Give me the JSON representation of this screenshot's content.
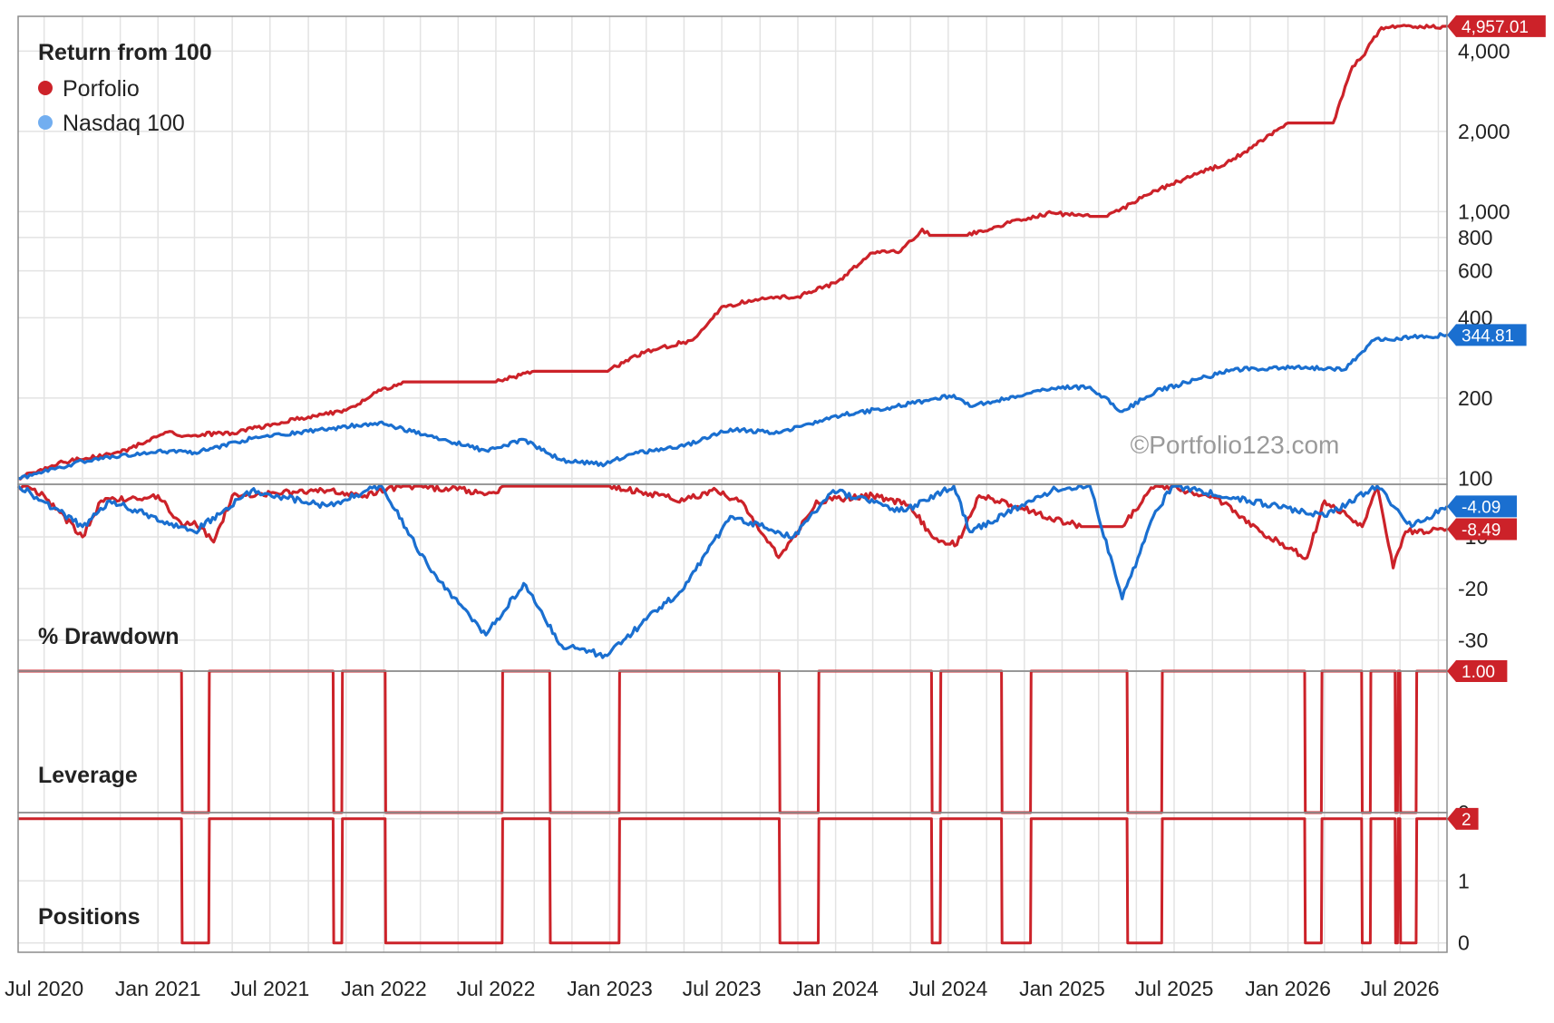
{
  "colors": {
    "portfolio": "#cc2229",
    "benchmark": "#1a6fd0",
    "benchmark_legend": "#72aef0"
  },
  "watermark": "©Portfolio123.com",
  "x_axis": {
    "labels": [
      "Jul 2020",
      "Jan 2021",
      "Jul 2021",
      "Jan 2022",
      "Jul 2022",
      "Jan 2023",
      "Jul 2023",
      "Jan 2024",
      "Jul 2024",
      "Jan 2025",
      "Jul 2025",
      "Jan 2026",
      "Jul 2026"
    ],
    "range": [
      "2020-05-20",
      "2026-09-15"
    ]
  },
  "chart_data": [
    {
      "type": "line",
      "title": "Return from 100",
      "yscale": "log",
      "ylim": [
        95,
        5400
      ],
      "ticks": [
        "100",
        "200",
        "400",
        "600",
        "800",
        "1,000",
        "2,000",
        "4,000"
      ],
      "tick_values": [
        100,
        200,
        400,
        600,
        800,
        1000,
        2000,
        4000
      ],
      "series": [
        {
          "name": "Porfolio",
          "color": "#cc2229",
          "last_label": "4,957.01",
          "points": [
            [
              "2020-05-20",
              100
            ],
            [
              "2020-08-01",
              115
            ],
            [
              "2020-11-01",
              125
            ],
            [
              "2021-01-20",
              150
            ],
            [
              "2021-02-01",
              145
            ],
            [
              "2021-05-01",
              148
            ],
            [
              "2021-09-01",
              170
            ],
            [
              "2021-11-01",
              180
            ],
            [
              "2021-12-20",
              210
            ],
            [
              "2022-02-01",
              230
            ],
            [
              "2022-06-01",
              230
            ],
            [
              "2022-07-01",
              230
            ],
            [
              "2022-09-01",
              252
            ],
            [
              "2022-12-25",
              252
            ],
            [
              "2023-03-01",
              300
            ],
            [
              "2023-05-15",
              330
            ],
            [
              "2023-07-01",
              440
            ],
            [
              "2023-09-01",
              470
            ],
            [
              "2023-11-01",
              480
            ],
            [
              "2024-01-01",
              540
            ],
            [
              "2024-03-01",
              700
            ],
            [
              "2024-04-15",
              710
            ],
            [
              "2024-05-20",
              860
            ],
            [
              "2024-06-01",
              815
            ],
            [
              "2024-08-01",
              815
            ],
            [
              "2024-10-01",
              900
            ],
            [
              "2024-12-15",
              990
            ],
            [
              "2025-02-15",
              960
            ],
            [
              "2025-03-15",
              960
            ],
            [
              "2025-06-01",
              1200
            ],
            [
              "2025-10-01",
              1550
            ],
            [
              "2026-01-01",
              2150
            ],
            [
              "2026-02-01",
              2150
            ],
            [
              "2026-03-15",
              2150
            ],
            [
              "2026-04-15",
              3500
            ],
            [
              "2026-05-01",
              3800
            ],
            [
              "2026-06-01",
              4900
            ],
            [
              "2026-09-15",
              4957.01
            ]
          ]
        },
        {
          "name": "Nasdaq 100",
          "color": "#1a6fd0",
          "legend_color": "#72aef0",
          "last_label": "344.81",
          "points": [
            [
              "2020-05-20",
              100
            ],
            [
              "2020-09-01",
              116
            ],
            [
              "2021-01-01",
              127
            ],
            [
              "2021-03-01",
              125
            ],
            [
              "2021-06-01",
              141
            ],
            [
              "2021-09-01",
              150
            ],
            [
              "2021-12-25",
              162
            ],
            [
              "2022-02-15",
              150
            ],
            [
              "2022-06-15",
              127
            ],
            [
              "2022-08-15",
              140
            ],
            [
              "2022-10-15",
              117
            ],
            [
              "2022-12-25",
              113
            ],
            [
              "2023-02-01",
              123
            ],
            [
              "2023-05-01",
              132
            ],
            [
              "2023-07-15",
              153
            ],
            [
              "2023-10-01",
              148
            ],
            [
              "2023-12-25",
              170
            ],
            [
              "2024-04-01",
              185
            ],
            [
              "2024-07-10",
              205
            ],
            [
              "2024-08-05",
              186
            ],
            [
              "2024-12-15",
              218
            ],
            [
              "2025-02-15",
              220
            ],
            [
              "2025-04-08",
              178
            ],
            [
              "2025-06-01",
              212
            ],
            [
              "2025-10-01",
              255
            ],
            [
              "2026-01-15",
              262
            ],
            [
              "2026-04-01",
              255
            ],
            [
              "2026-05-20",
              330
            ],
            [
              "2026-09-15",
              344.81
            ]
          ]
        }
      ]
    },
    {
      "type": "line",
      "title": "% Drawdown",
      "ylim": [
        -36,
        0.2
      ],
      "ticks": [
        "-10",
        "-20",
        "-30"
      ],
      "tick_values": [
        -10,
        -20,
        -30
      ],
      "series": [
        {
          "name": "Porfolio",
          "color": "#cc2229",
          "last_label": "-8.49",
          "points": [
            [
              "2020-05-20",
              0
            ],
            [
              "2020-07-01",
              -2
            ],
            [
              "2020-09-01",
              -10
            ],
            [
              "2020-10-01",
              -3
            ],
            [
              "2021-01-01",
              -2
            ],
            [
              "2021-02-10",
              -8
            ],
            [
              "2021-03-01",
              -7
            ],
            [
              "2021-04-01",
              -11
            ],
            [
              "2021-05-01",
              -2
            ],
            [
              "2021-10-01",
              -1
            ],
            [
              "2021-12-01",
              -2
            ],
            [
              "2022-02-01",
              0
            ],
            [
              "2022-07-01",
              -1.5
            ],
            [
              "2022-07-15",
              0
            ],
            [
              "2023-01-01",
              0
            ],
            [
              "2023-05-01",
              -3
            ],
            [
              "2023-06-15",
              -1
            ],
            [
              "2023-08-01",
              -3
            ],
            [
              "2023-10-01",
              -14
            ],
            [
              "2023-11-01",
              -9
            ],
            [
              "2023-12-01",
              -3
            ],
            [
              "2024-03-01",
              -2
            ],
            [
              "2024-05-01",
              -4
            ],
            [
              "2024-06-05",
              -10
            ],
            [
              "2024-07-15",
              -11.5
            ],
            [
              "2024-08-20",
              -2
            ],
            [
              "2025-02-01",
              -8
            ],
            [
              "2025-04-08",
              -8
            ],
            [
              "2025-06-01",
              0
            ],
            [
              "2025-09-01",
              -2
            ],
            [
              "2025-12-01",
              -10
            ],
            [
              "2026-02-01",
              -14
            ],
            [
              "2026-03-01",
              -3
            ],
            [
              "2026-05-01",
              -8
            ],
            [
              "2026-05-25",
              0
            ],
            [
              "2026-06-20",
              -16
            ],
            [
              "2026-07-10",
              -9
            ],
            [
              "2026-09-15",
              -8.49
            ]
          ]
        },
        {
          "name": "Nasdaq 100",
          "color": "#1a6fd0",
          "last_label": "-4.09",
          "points": [
            [
              "2020-05-20",
              0
            ],
            [
              "2020-09-01",
              -8
            ],
            [
              "2020-10-15",
              -3
            ],
            [
              "2021-03-01",
              -9
            ],
            [
              "2021-06-01",
              -1
            ],
            [
              "2021-10-01",
              -4
            ],
            [
              "2021-12-28",
              0
            ],
            [
              "2022-03-15",
              -16
            ],
            [
              "2022-06-15",
              -29
            ],
            [
              "2022-08-15",
              -19
            ],
            [
              "2022-10-15",
              -31
            ],
            [
              "2022-12-28",
              -33
            ],
            [
              "2023-03-01",
              -26
            ],
            [
              "2023-05-01",
              -20
            ],
            [
              "2023-07-15",
              -6
            ],
            [
              "2023-10-25",
              -10
            ],
            [
              "2023-12-28",
              -1
            ],
            [
              "2024-04-20",
              -5
            ],
            [
              "2024-07-10",
              0
            ],
            [
              "2024-08-05",
              -9
            ],
            [
              "2024-12-15",
              -1
            ],
            [
              "2025-02-15",
              0
            ],
            [
              "2025-04-08",
              -22
            ],
            [
              "2025-06-01",
              -5
            ],
            [
              "2025-07-01",
              0
            ],
            [
              "2026-03-01",
              -6
            ],
            [
              "2026-05-25",
              0
            ],
            [
              "2026-07-20",
              -8
            ],
            [
              "2026-09-15",
              -4.09
            ]
          ]
        }
      ]
    },
    {
      "type": "line",
      "title": "Leverage",
      "ylim": [
        0,
        1
      ],
      "ticks": [
        "1",
        "0"
      ],
      "tick_values": [
        1,
        0
      ],
      "series": [
        {
          "name": "Porfolio",
          "color": "#cc2229",
          "last_label": "1.00",
          "points": [
            [
              "2020-05-20",
              1
            ],
            [
              "2021-02-08",
              1
            ],
            [
              "2021-02-09",
              0
            ],
            [
              "2021-03-24",
              0
            ],
            [
              "2021-03-25",
              1
            ],
            [
              "2021-10-11",
              1
            ],
            [
              "2021-10-12",
              0
            ],
            [
              "2021-10-25",
              0
            ],
            [
              "2021-10-26",
              1
            ],
            [
              "2022-01-03",
              1
            ],
            [
              "2022-01-04",
              0
            ],
            [
              "2022-07-11",
              0
            ],
            [
              "2022-07-12",
              1
            ],
            [
              "2022-09-26",
              1
            ],
            [
              "2022-09-27",
              0
            ],
            [
              "2023-01-16",
              0
            ],
            [
              "2023-01-17",
              1
            ],
            [
              "2023-10-02",
              1
            ],
            [
              "2023-10-03",
              0
            ],
            [
              "2023-12-04",
              0
            ],
            [
              "2023-12-05",
              1
            ],
            [
              "2024-06-04",
              1
            ],
            [
              "2024-06-05",
              0
            ],
            [
              "2024-06-18",
              0
            ],
            [
              "2024-06-19",
              1
            ],
            [
              "2024-09-25",
              1
            ],
            [
              "2024-09-26",
              0
            ],
            [
              "2024-11-11",
              0
            ],
            [
              "2024-11-12",
              1
            ],
            [
              "2025-04-16",
              1
            ],
            [
              "2025-04-17",
              0
            ],
            [
              "2025-06-11",
              0
            ],
            [
              "2025-06-12",
              1
            ],
            [
              "2026-01-28",
              1
            ],
            [
              "2026-01-29",
              0
            ],
            [
              "2026-02-24",
              0
            ],
            [
              "2026-02-25",
              1
            ],
            [
              "2026-04-30",
              1
            ],
            [
              "2026-05-01",
              0
            ],
            [
              "2026-05-14",
              0
            ],
            [
              "2026-05-15",
              1
            ],
            [
              "2026-06-23",
              1
            ],
            [
              "2026-06-24",
              0
            ],
            [
              "2026-06-27",
              0
            ],
            [
              "2026-06-28",
              1
            ],
            [
              "2026-07-01",
              1
            ],
            [
              "2026-07-02",
              0
            ],
            [
              "2026-07-27",
              0
            ],
            [
              "2026-07-28",
              1
            ],
            [
              "2026-09-15",
              1
            ]
          ]
        }
      ]
    },
    {
      "type": "line",
      "title": "Positions",
      "ylim": [
        -0.15,
        2.1
      ],
      "ticks": [
        "2",
        "1",
        "0"
      ],
      "tick_values": [
        2,
        1,
        0
      ],
      "series": [
        {
          "name": "Porfolio",
          "color": "#cc2229",
          "last_label": "2",
          "points": [
            [
              "2020-05-20",
              2
            ],
            [
              "2021-02-08",
              2
            ],
            [
              "2021-02-09",
              0
            ],
            [
              "2021-03-24",
              0
            ],
            [
              "2021-03-25",
              2
            ],
            [
              "2021-10-11",
              2
            ],
            [
              "2021-10-12",
              0
            ],
            [
              "2021-10-25",
              0
            ],
            [
              "2021-10-26",
              2
            ],
            [
              "2022-01-03",
              2
            ],
            [
              "2022-01-04",
              0
            ],
            [
              "2022-07-11",
              0
            ],
            [
              "2022-07-12",
              2
            ],
            [
              "2022-09-26",
              2
            ],
            [
              "2022-09-27",
              0
            ],
            [
              "2023-01-16",
              0
            ],
            [
              "2023-01-17",
              2
            ],
            [
              "2023-10-02",
              2
            ],
            [
              "2023-10-03",
              0
            ],
            [
              "2023-12-04",
              0
            ],
            [
              "2023-12-05",
              2
            ],
            [
              "2024-06-04",
              2
            ],
            [
              "2024-06-05",
              0
            ],
            [
              "2024-06-18",
              0
            ],
            [
              "2024-06-19",
              2
            ],
            [
              "2024-09-25",
              2
            ],
            [
              "2024-09-26",
              0
            ],
            [
              "2024-11-11",
              0
            ],
            [
              "2024-11-12",
              2
            ],
            [
              "2025-04-16",
              2
            ],
            [
              "2025-04-17",
              0
            ],
            [
              "2025-06-11",
              0
            ],
            [
              "2025-06-12",
              2
            ],
            [
              "2026-01-28",
              2
            ],
            [
              "2026-01-29",
              0
            ],
            [
              "2026-02-24",
              0
            ],
            [
              "2026-02-25",
              2
            ],
            [
              "2026-04-30",
              2
            ],
            [
              "2026-05-01",
              0
            ],
            [
              "2026-05-14",
              0
            ],
            [
              "2026-05-15",
              2
            ],
            [
              "2026-06-23",
              2
            ],
            [
              "2026-06-24",
              0
            ],
            [
              "2026-06-27",
              0
            ],
            [
              "2026-06-28",
              2
            ],
            [
              "2026-07-01",
              2
            ],
            [
              "2026-07-02",
              0
            ],
            [
              "2026-07-27",
              0
            ],
            [
              "2026-07-28",
              2
            ],
            [
              "2026-09-15",
              2
            ]
          ]
        }
      ]
    }
  ]
}
